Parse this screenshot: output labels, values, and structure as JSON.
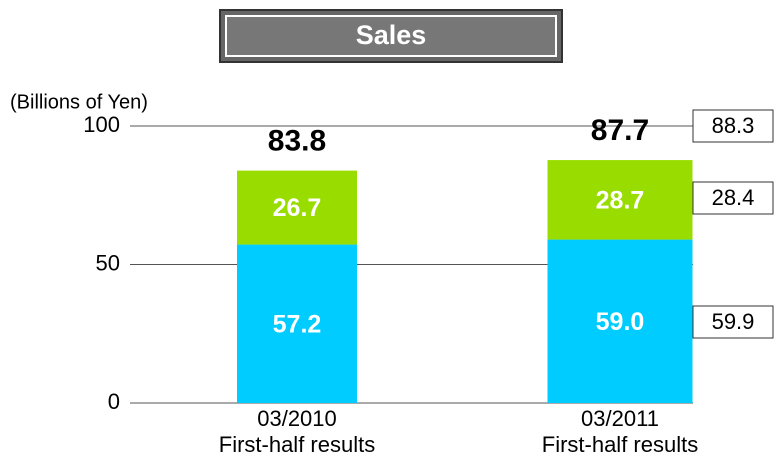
{
  "chart_data": {
    "type": "stacked_bar",
    "title": "Sales",
    "y_axis_label": "(Billions of Yen)",
    "categories": [
      "03/2010",
      "03/2011"
    ],
    "category_notes": [
      "First-half results",
      "First-half results"
    ],
    "series": [
      {
        "color": "#00ccff",
        "values": [
          57.2,
          59.0
        ],
        "value_labels": [
          "57.2",
          "59.0"
        ]
      },
      {
        "color": "#99dd00",
        "values": [
          26.7,
          28.7
        ]
      }
    ],
    "totals": [
      83.8,
      87.7
    ],
    "side_values": [
      59.9,
      28.4,
      88.3
    ],
    "ylim": [
      0,
      100
    ],
    "yticks": [
      0,
      50,
      100
    ],
    "grid": true
  }
}
